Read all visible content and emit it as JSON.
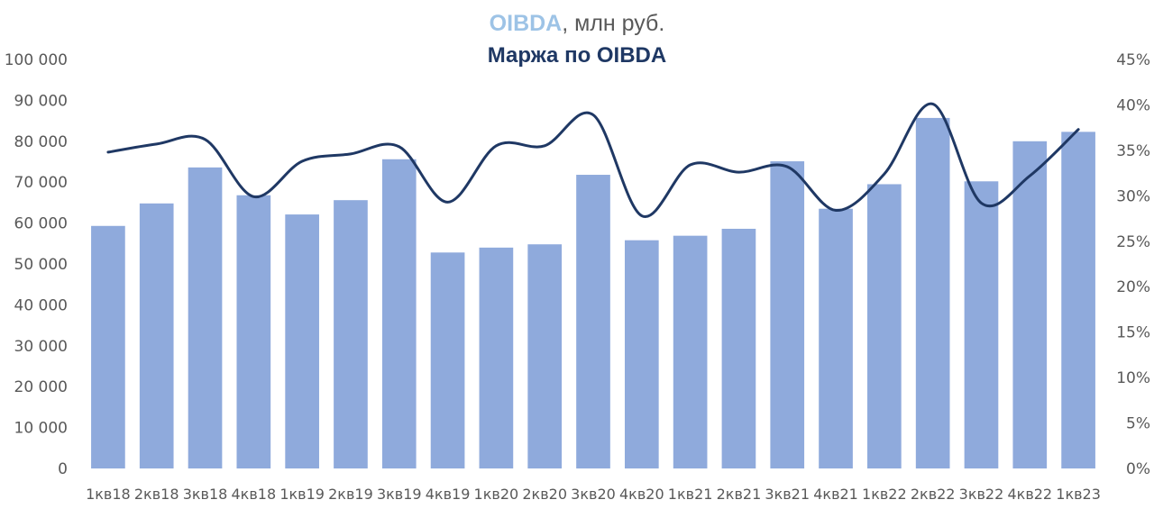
{
  "chart_data": {
    "type": "bar",
    "title_primary": "OIBDA",
    "title_suffix": ", млн руб.",
    "subtitle": "Маржа по OIBDA",
    "categories": [
      "1кв18",
      "2кв18",
      "3кв18",
      "4кв18",
      "1кв19",
      "2кв19",
      "3кв19",
      "4кв19",
      "1кв20",
      "2кв20",
      "3кв20",
      "4кв20",
      "1кв21",
      "2кв21",
      "3кв21",
      "4кв21",
      "1кв22",
      "2кв22",
      "3кв22",
      "4кв22",
      "1кв23"
    ],
    "series": [
      {
        "type": "bar",
        "axis": "left",
        "color": "#8FAADC",
        "values": [
          59300,
          64800,
          73600,
          66800,
          62100,
          65600,
          75600,
          52800,
          54000,
          54800,
          71800,
          55800,
          56900,
          58600,
          75100,
          63500,
          69500,
          85700,
          70200,
          80000,
          82300
        ]
      },
      {
        "type": "line",
        "axis": "right",
        "color": "#1F3864",
        "values": [
          34.8,
          35.7,
          36.2,
          29.9,
          33.8,
          34.6,
          35.4,
          29.3,
          35.5,
          35.5,
          38.9,
          27.8,
          33.4,
          32.6,
          33.2,
          28.4,
          32.4,
          40.1,
          29.2,
          32.2,
          37.3
        ]
      }
    ],
    "y_left": {
      "min": 0,
      "max": 100000,
      "step": 10000,
      "tick_labels": [
        "0",
        "10 000",
        "20 000",
        "30 000",
        "40 000",
        "50 000",
        "60 000",
        "70 000",
        "80 000",
        "90 000",
        "100 000"
      ]
    },
    "y_right": {
      "min": 0,
      "max": 45,
      "step": 5,
      "tick_labels": [
        "0%",
        "5%",
        "10%",
        "15%",
        "20%",
        "25%",
        "30%",
        "35%",
        "40%",
        "45%"
      ]
    },
    "grid": false,
    "legend": "none"
  }
}
